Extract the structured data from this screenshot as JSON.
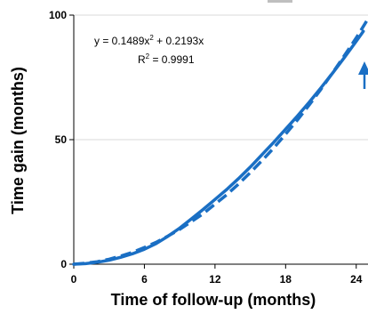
{
  "chart_data": {
    "type": "line",
    "xlabel": "Time of follow-up (months)",
    "ylabel": "Time gain (months)",
    "xlim": [
      0,
      25
    ],
    "ylim": [
      0,
      100
    ],
    "xticks": [
      "0",
      "6",
      "12",
      "18",
      "24"
    ],
    "xtick_values": [
      0,
      6,
      12,
      18,
      24
    ],
    "yticks": [
      "0",
      "50",
      "100"
    ],
    "ytick_values": [
      0,
      50,
      100
    ],
    "grid": "horizontal",
    "colors": {
      "series": "#1a6fc4",
      "axis": "#000000",
      "grid": "#d9d9d9"
    },
    "series": [
      {
        "style": "solid",
        "x": [
          0,
          1,
          2,
          3,
          4,
          5,
          6,
          7,
          8,
          9,
          10,
          11,
          12,
          13,
          14,
          15,
          16,
          17,
          18,
          19,
          20,
          21,
          22,
          23,
          24,
          24.6
        ],
        "y": [
          0,
          0.2,
          0.8,
          1.6,
          2.8,
          4.2,
          6.0,
          8.3,
          11.2,
          14.5,
          18.2,
          22.0,
          26.0,
          30.0,
          34.4,
          39.0,
          44.0,
          49.0,
          54.2,
          59.5,
          65.0,
          70.8,
          76.8,
          83.0,
          89.5,
          93.5
        ]
      },
      {
        "style": "dashed",
        "x": [
          0,
          1,
          2,
          3,
          4,
          5,
          6,
          7,
          8,
          9,
          10,
          11,
          12,
          13,
          14,
          15,
          16,
          17,
          18,
          19,
          20,
          21,
          22,
          23,
          24,
          25
        ],
        "y": [
          0,
          0.4,
          1.0,
          2.0,
          3.3,
          4.8,
          6.7,
          8.8,
          11.3,
          14.0,
          17.1,
          20.3,
          24.1,
          27.9,
          32.2,
          36.8,
          41.6,
          46.7,
          52.2,
          57.9,
          63.9,
          70.2,
          76.9,
          83.8,
          90.9,
          98.5
        ]
      }
    ],
    "annotations": {
      "equation_prefix": "y = 0.1489x",
      "equation_sup": "2",
      "equation_suffix": " + 0.2193x",
      "r2_prefix": "R",
      "r2_sup": "2",
      "r2_suffix": " = 0.9991"
    }
  }
}
